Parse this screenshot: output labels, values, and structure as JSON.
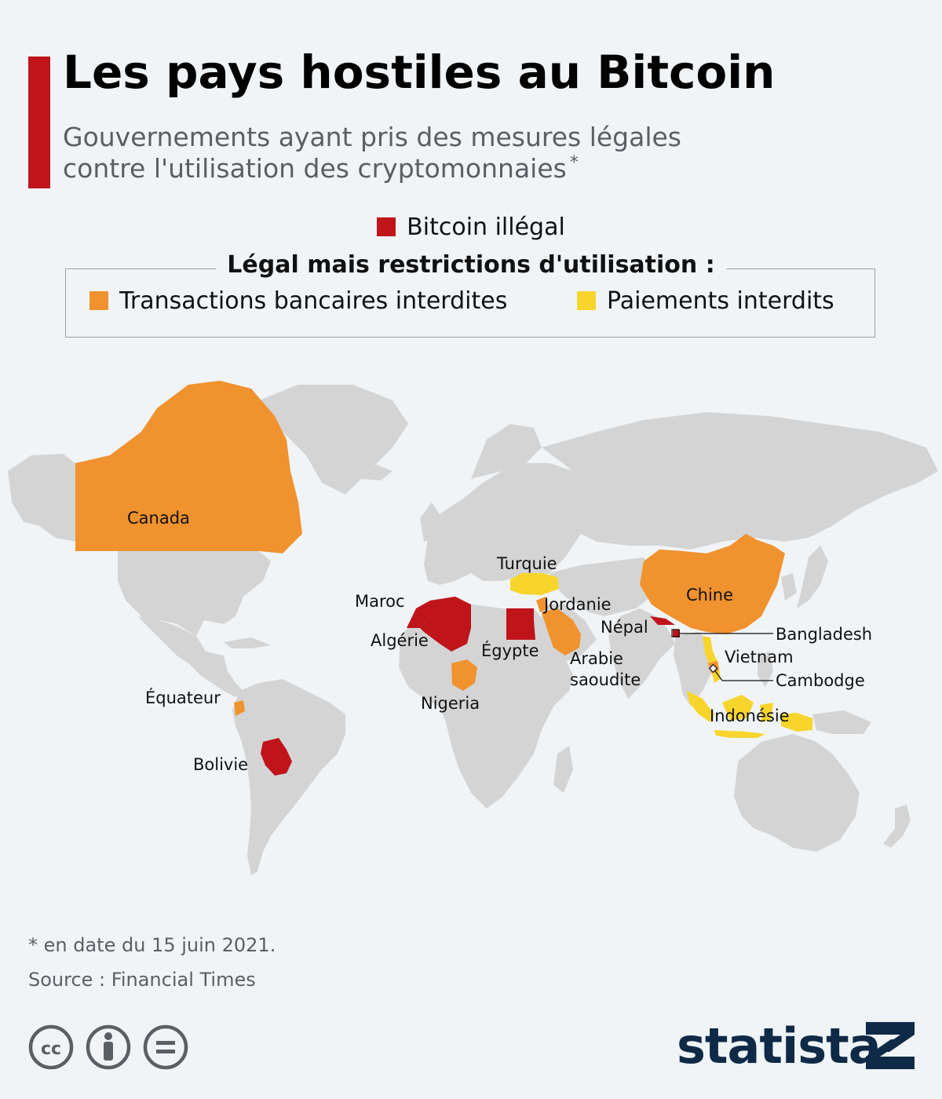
{
  "header": {
    "title": "Les pays hostiles au Bitcoin",
    "subtitle_line1": "Gouvernements ayant pris des mesures légales",
    "subtitle_line2": "contre l'utilisation des cryptomonnaies",
    "subtitle_mark": "*"
  },
  "legend": {
    "illegal": {
      "label": "Bitcoin illégal",
      "color": "#c0141b"
    },
    "restrictions_title": "Légal mais restrictions d'utilisation :",
    "bank_ban": {
      "label": "Transactions bancaires interdites",
      "color": "#f0922e"
    },
    "payment_ban": {
      "label": "Paiements interdits",
      "color": "#f7d52c"
    }
  },
  "map": {
    "base_color": "#d4d4d4",
    "countries": {
      "canada": {
        "label": "Canada",
        "category": "bank_ban"
      },
      "turquie": {
        "label": "Turquie",
        "category": "payment_ban"
      },
      "maroc": {
        "label": "Maroc",
        "category": "illegal"
      },
      "algerie": {
        "label": "Algérie",
        "category": "illegal"
      },
      "egypte": {
        "label": "Égypte",
        "category": "illegal"
      },
      "jordanie": {
        "label": "Jordanie",
        "category": "bank_ban"
      },
      "arabie": {
        "label_line1": "Arabie",
        "label_line2": "saoudite",
        "category": "bank_ban"
      },
      "nepal": {
        "label": "Népal",
        "category": "illegal"
      },
      "chine": {
        "label": "Chine",
        "category": "bank_ban"
      },
      "bangladesh": {
        "label": "Bangladesh",
        "category": "illegal"
      },
      "vietnam": {
        "label": "Vietnam",
        "category": "payment_ban"
      },
      "cambodge": {
        "label": "Cambodge",
        "category": "bank_ban"
      },
      "indonesie": {
        "label": "Indonésie",
        "category": "payment_ban"
      },
      "nigeria": {
        "label": "Nigeria",
        "category": "bank_ban"
      },
      "equateur": {
        "label": "Équateur",
        "category": "bank_ban"
      },
      "bolivie": {
        "label": "Bolivie",
        "category": "illegal"
      }
    }
  },
  "footer": {
    "note": "* en date du 15 juin 2021.",
    "source": "Source : Financial Times",
    "brand": "statista",
    "license_icons": [
      "cc-icon",
      "by-icon",
      "nd-icon"
    ]
  }
}
